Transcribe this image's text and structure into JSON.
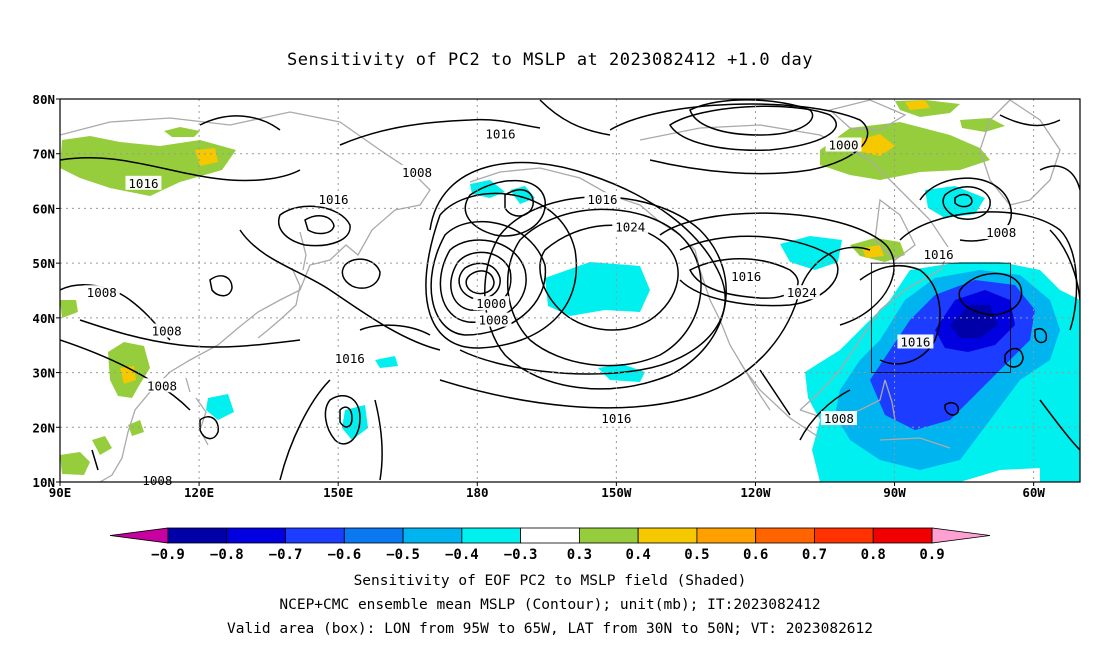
{
  "title": "Sensitivity of PC2 to MSLP at 2023082412 +1.0 day",
  "map": {
    "lon_labels": [
      "90E",
      "120E",
      "150E",
      "180",
      "150W",
      "120W",
      "90W",
      "60W"
    ],
    "lat_labels": [
      "10N",
      "20N",
      "30N",
      "40N",
      "50N",
      "60N",
      "70N",
      "80N"
    ],
    "contour_labels": [
      {
        "text": "1016",
        "lon": 185,
        "lat": 73.5
      },
      {
        "text": "1000",
        "lon": 259,
        "lat": 71.5
      },
      {
        "text": "1008",
        "lon": 167,
        "lat": 66.5
      },
      {
        "text": "1016",
        "lon": 108,
        "lat": 64.5
      },
      {
        "text": "1016",
        "lon": 149,
        "lat": 61.5
      },
      {
        "text": "1016",
        "lon": 207,
        "lat": 61.5
      },
      {
        "text": "1024",
        "lon": 213,
        "lat": 56.5
      },
      {
        "text": "1016",
        "lon": 279.5,
        "lat": 51.5
      },
      {
        "text": "1008",
        "lon": 293,
        "lat": 55.5
      },
      {
        "text": "1016",
        "lon": 238,
        "lat": 47.5
      },
      {
        "text": "1024",
        "lon": 250,
        "lat": 44.5
      },
      {
        "text": "1008",
        "lon": 99,
        "lat": 44.5
      },
      {
        "text": "1000",
        "lon": 183,
        "lat": 42.5
      },
      {
        "text": "1008",
        "lon": 183.5,
        "lat": 39.5
      },
      {
        "text": "1008",
        "lon": 113,
        "lat": 37.5
      },
      {
        "text": "1016",
        "lon": 274.5,
        "lat": 35.5
      },
      {
        "text": "1016",
        "lon": 152.5,
        "lat": 32.5
      },
      {
        "text": "1008",
        "lon": 112,
        "lat": 27.5
      },
      {
        "text": "1016",
        "lon": 210,
        "lat": 21.5
      },
      {
        "text": "1008",
        "lon": 258,
        "lat": 21.5
      },
      {
        "text": "1008",
        "lon": 111,
        "lat": 10.2
      }
    ]
  },
  "colorbar": {
    "labels": [
      "-0.9",
      "-0.8",
      "-0.7",
      "-0.6",
      "-0.5",
      "-0.4",
      "-0.3",
      "0.3",
      "0.4",
      "0.5",
      "0.6",
      "0.7",
      "0.8",
      "0.9"
    ],
    "colors": [
      "#0000a8",
      "#0000e0",
      "#1c3cff",
      "#0a78f0",
      "#00b4f0",
      "#00f0f0",
      "#ffffff",
      "#96cd3c",
      "#f5c800",
      "#ffa000",
      "#ff6400",
      "#ff3200",
      "#f00000"
    ],
    "left_arrow_color": "#c800a0",
    "right_arrow_color": "#ffa0d2"
  },
  "captions": [
    "Sensitivity of EOF PC2 to MSLP field (Shaded)",
    "NCEP+CMC ensemble mean MSLP (Contour); unit(mb); IT:2023082412",
    "Valid area (box): LON from 95W to 65W, LAT from 30N to 50N; VT: 2023082612"
  ]
}
